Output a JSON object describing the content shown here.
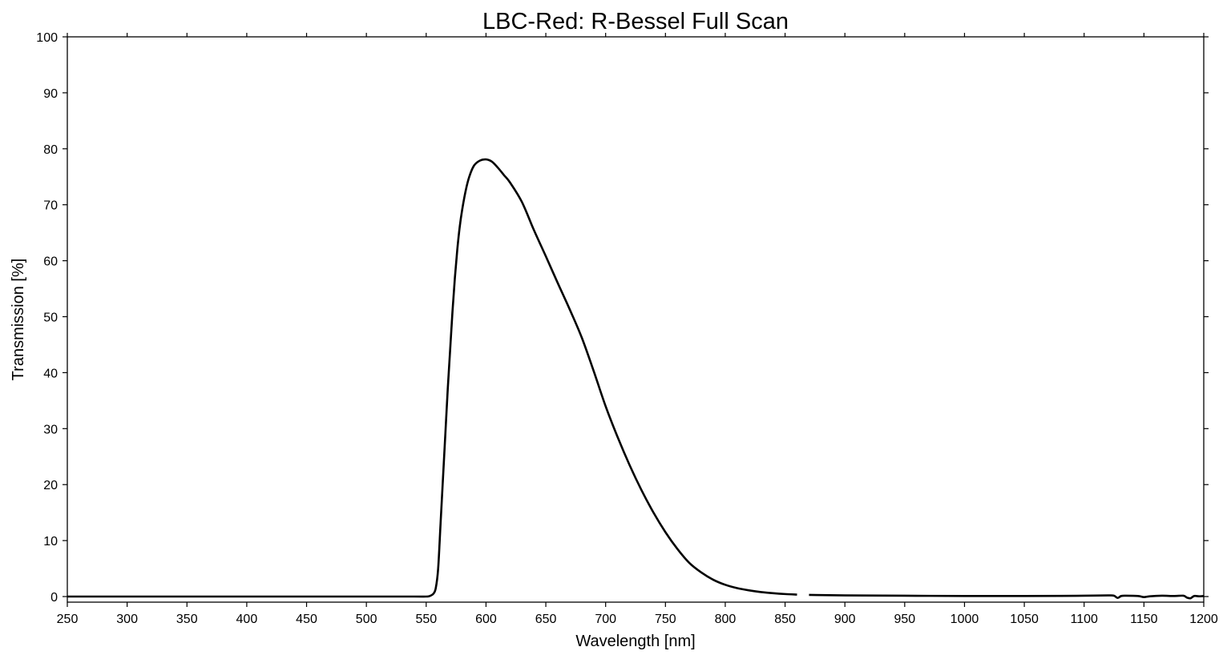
{
  "chart_data": {
    "type": "line",
    "title": "LBC-Red: R-Bessel Full Scan",
    "xlabel": "Wavelength [nm]",
    "ylabel": "Transmission [%]",
    "xlim": [
      250,
      1200
    ],
    "ylim": [
      -1,
      100
    ],
    "xticks": [
      250,
      300,
      350,
      400,
      450,
      500,
      550,
      600,
      650,
      700,
      750,
      800,
      850,
      900,
      950,
      1000,
      1050,
      1100,
      1150,
      1200
    ],
    "yticks": [
      0,
      10,
      20,
      30,
      40,
      50,
      60,
      70,
      80,
      90,
      100
    ],
    "grid": false,
    "line_color": "#000000",
    "segments": [
      {
        "x": [
          250,
          300,
          350,
          400,
          450,
          500,
          540,
          550,
          553,
          556,
          558,
          560,
          562,
          564,
          566,
          568,
          570,
          572,
          574,
          576,
          578,
          580,
          583,
          586,
          590,
          595,
          600,
          605,
          610,
          615,
          620,
          630,
          640,
          650,
          660,
          670,
          680,
          690,
          700,
          710,
          720,
          730,
          740,
          750,
          760,
          770,
          780,
          790,
          800,
          810,
          820,
          830,
          840,
          850,
          860
        ],
        "y": [
          0,
          0,
          0,
          0,
          0,
          0,
          0,
          0,
          0.1,
          0.5,
          1.5,
          5,
          13,
          21,
          29,
          37,
          44,
          51,
          57,
          62,
          66,
          69,
          72.5,
          75,
          77,
          77.9,
          78.1,
          77.7,
          76.6,
          75.3,
          74,
          70.5,
          65.5,
          60.8,
          56,
          51.3,
          46.3,
          40.3,
          34,
          28.5,
          23.5,
          19,
          15,
          11.5,
          8.5,
          6,
          4.3,
          3,
          2.1,
          1.5,
          1.1,
          0.8,
          0.6,
          0.45,
          0.35
        ]
      },
      {
        "x": [
          870,
          900,
          950,
          1000,
          1050,
          1080,
          1100,
          1120,
          1125,
          1128,
          1131,
          1135,
          1145,
          1150,
          1155,
          1165,
          1175,
          1183,
          1186,
          1189,
          1192,
          1196,
          1200
        ],
        "y": [
          0.3,
          0.2,
          0.15,
          0.1,
          0.1,
          0.12,
          0.15,
          0.2,
          0.15,
          -0.25,
          0.1,
          0.15,
          0.1,
          -0.1,
          0.05,
          0.15,
          0.1,
          0.15,
          -0.2,
          -0.3,
          0.1,
          0.05,
          0.1
        ]
      }
    ]
  }
}
